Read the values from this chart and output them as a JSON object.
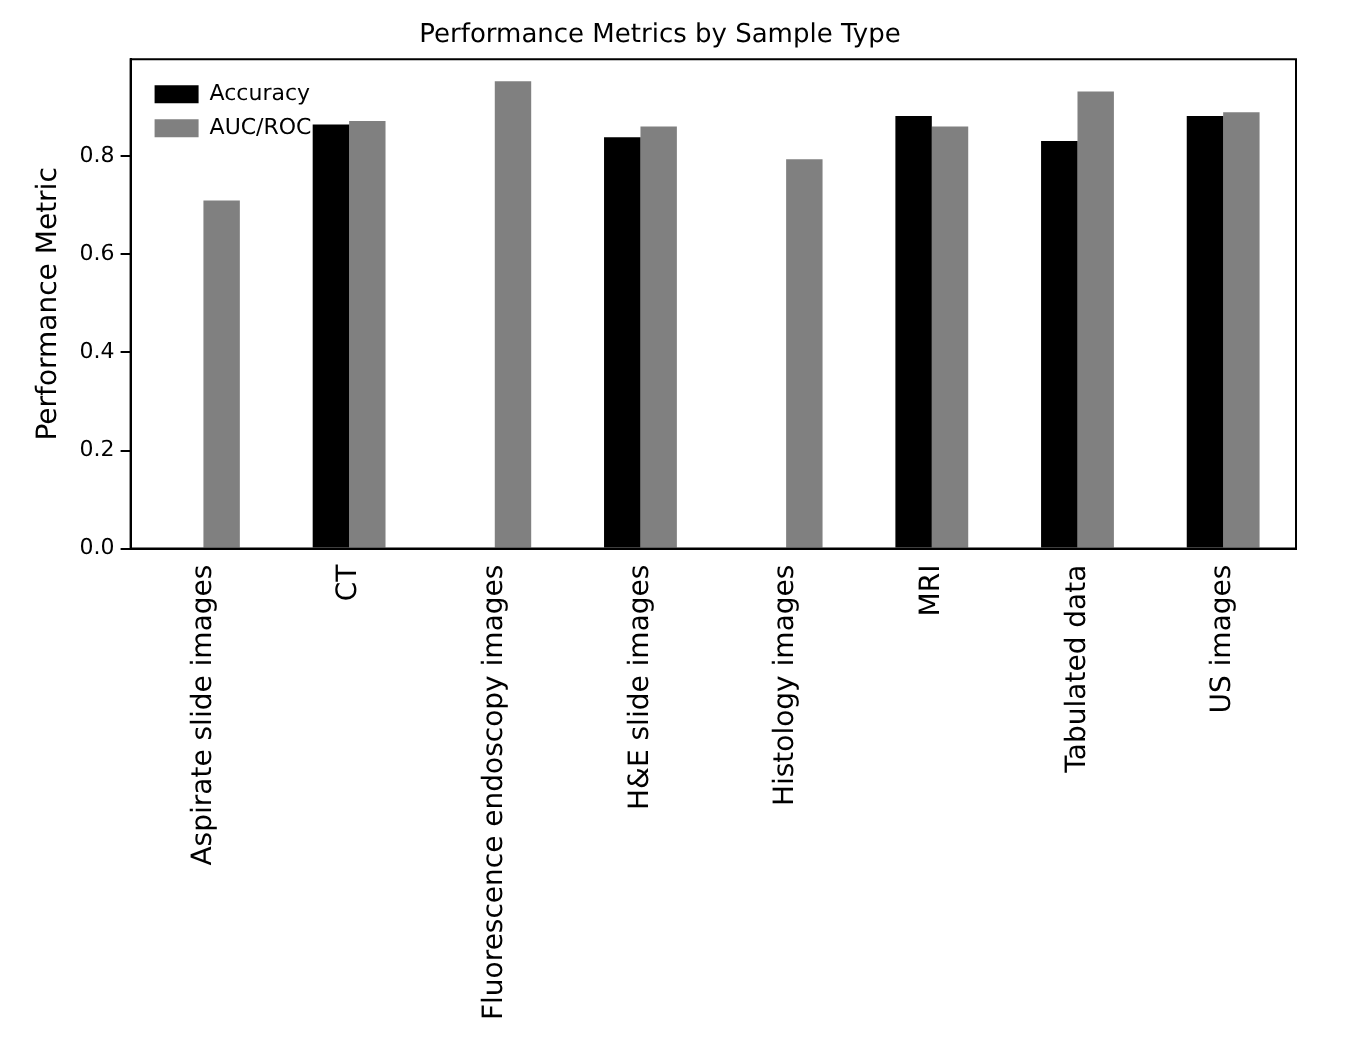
{
  "chart_data": {
    "type": "bar",
    "title": "Performance Metrics by Sample Type",
    "ylabel": "Performance Metric",
    "categories": [
      "Aspirate slide images",
      "CT",
      "Fluorescence endoscopy images",
      "H&E slide images",
      "Histology images",
      "MRI",
      "Tabulated data",
      "US images"
    ],
    "series": [
      {
        "name": "Accuracy",
        "color": "#000000",
        "values": [
          null,
          0.865,
          null,
          0.839,
          null,
          0.882,
          0.831,
          0.882
        ]
      },
      {
        "name": "AUC/ROC",
        "color": "#808080",
        "values": [
          0.71,
          0.872,
          0.953,
          0.861,
          0.794,
          0.861,
          0.932,
          0.89
        ]
      }
    ],
    "ylim": [
      0,
      0.998
    ],
    "yticks": [
      {
        "value": 0,
        "label": "0.0"
      },
      {
        "value": 0.2,
        "label": "0.2"
      },
      {
        "value": 0.4,
        "label": "0.4"
      },
      {
        "value": 0.6,
        "label": "0.6"
      },
      {
        "value": 0.8,
        "label": "0.8"
      }
    ],
    "grid": false,
    "legend": "top left"
  }
}
